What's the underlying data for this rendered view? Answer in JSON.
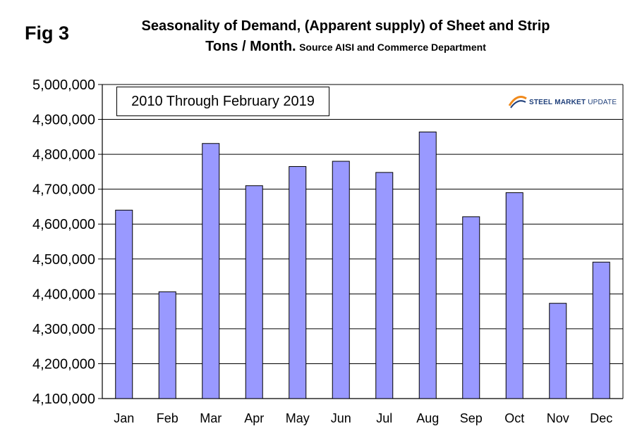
{
  "figure_label": "Fig 3",
  "title": {
    "line1": "Seasonality of Demand, (Apparent supply) of Sheet and Strip",
    "line2_main": "Tons / Month.",
    "line2_source": "Source AISI and Commerce Department"
  },
  "annotation": "2010 Through February 2019",
  "logo": {
    "word1": "STEEL",
    "word2": "MARKET",
    "word3": "UPDATE",
    "colors": {
      "blue": "#1f3f7a",
      "orange": "#f08a1c"
    }
  },
  "colors": {
    "bar_fill": "#9999ff",
    "bar_stroke": "#000000",
    "grid": "#000000"
  },
  "chart_data": {
    "type": "bar",
    "title": "Seasonality of Demand, (Apparent supply) of Sheet and Strip Tons / Month. Source AISI and Commerce Department",
    "xlabel": "",
    "ylabel": "",
    "categories": [
      "Jan",
      "Feb",
      "Mar",
      "Apr",
      "May",
      "Jun",
      "Jul",
      "Aug",
      "Sep",
      "Oct",
      "Nov",
      "Dec"
    ],
    "values": [
      4640000,
      4406000,
      4831000,
      4710000,
      4765000,
      4780000,
      4748000,
      4864000,
      4621000,
      4690000,
      4373000,
      4491000
    ],
    "ylim": [
      4100000,
      5000000
    ],
    "yticks": [
      4100000,
      4200000,
      4300000,
      4400000,
      4500000,
      4600000,
      4700000,
      4800000,
      4900000,
      5000000
    ],
    "ytick_labels": [
      "4,100,000",
      "4,200,000",
      "4,300,000",
      "4,400,000",
      "4,500,000",
      "4,600,000",
      "4,700,000",
      "4,800,000",
      "4,900,000",
      "5,000,000"
    ],
    "grid": "horizontal",
    "legend": "none"
  }
}
